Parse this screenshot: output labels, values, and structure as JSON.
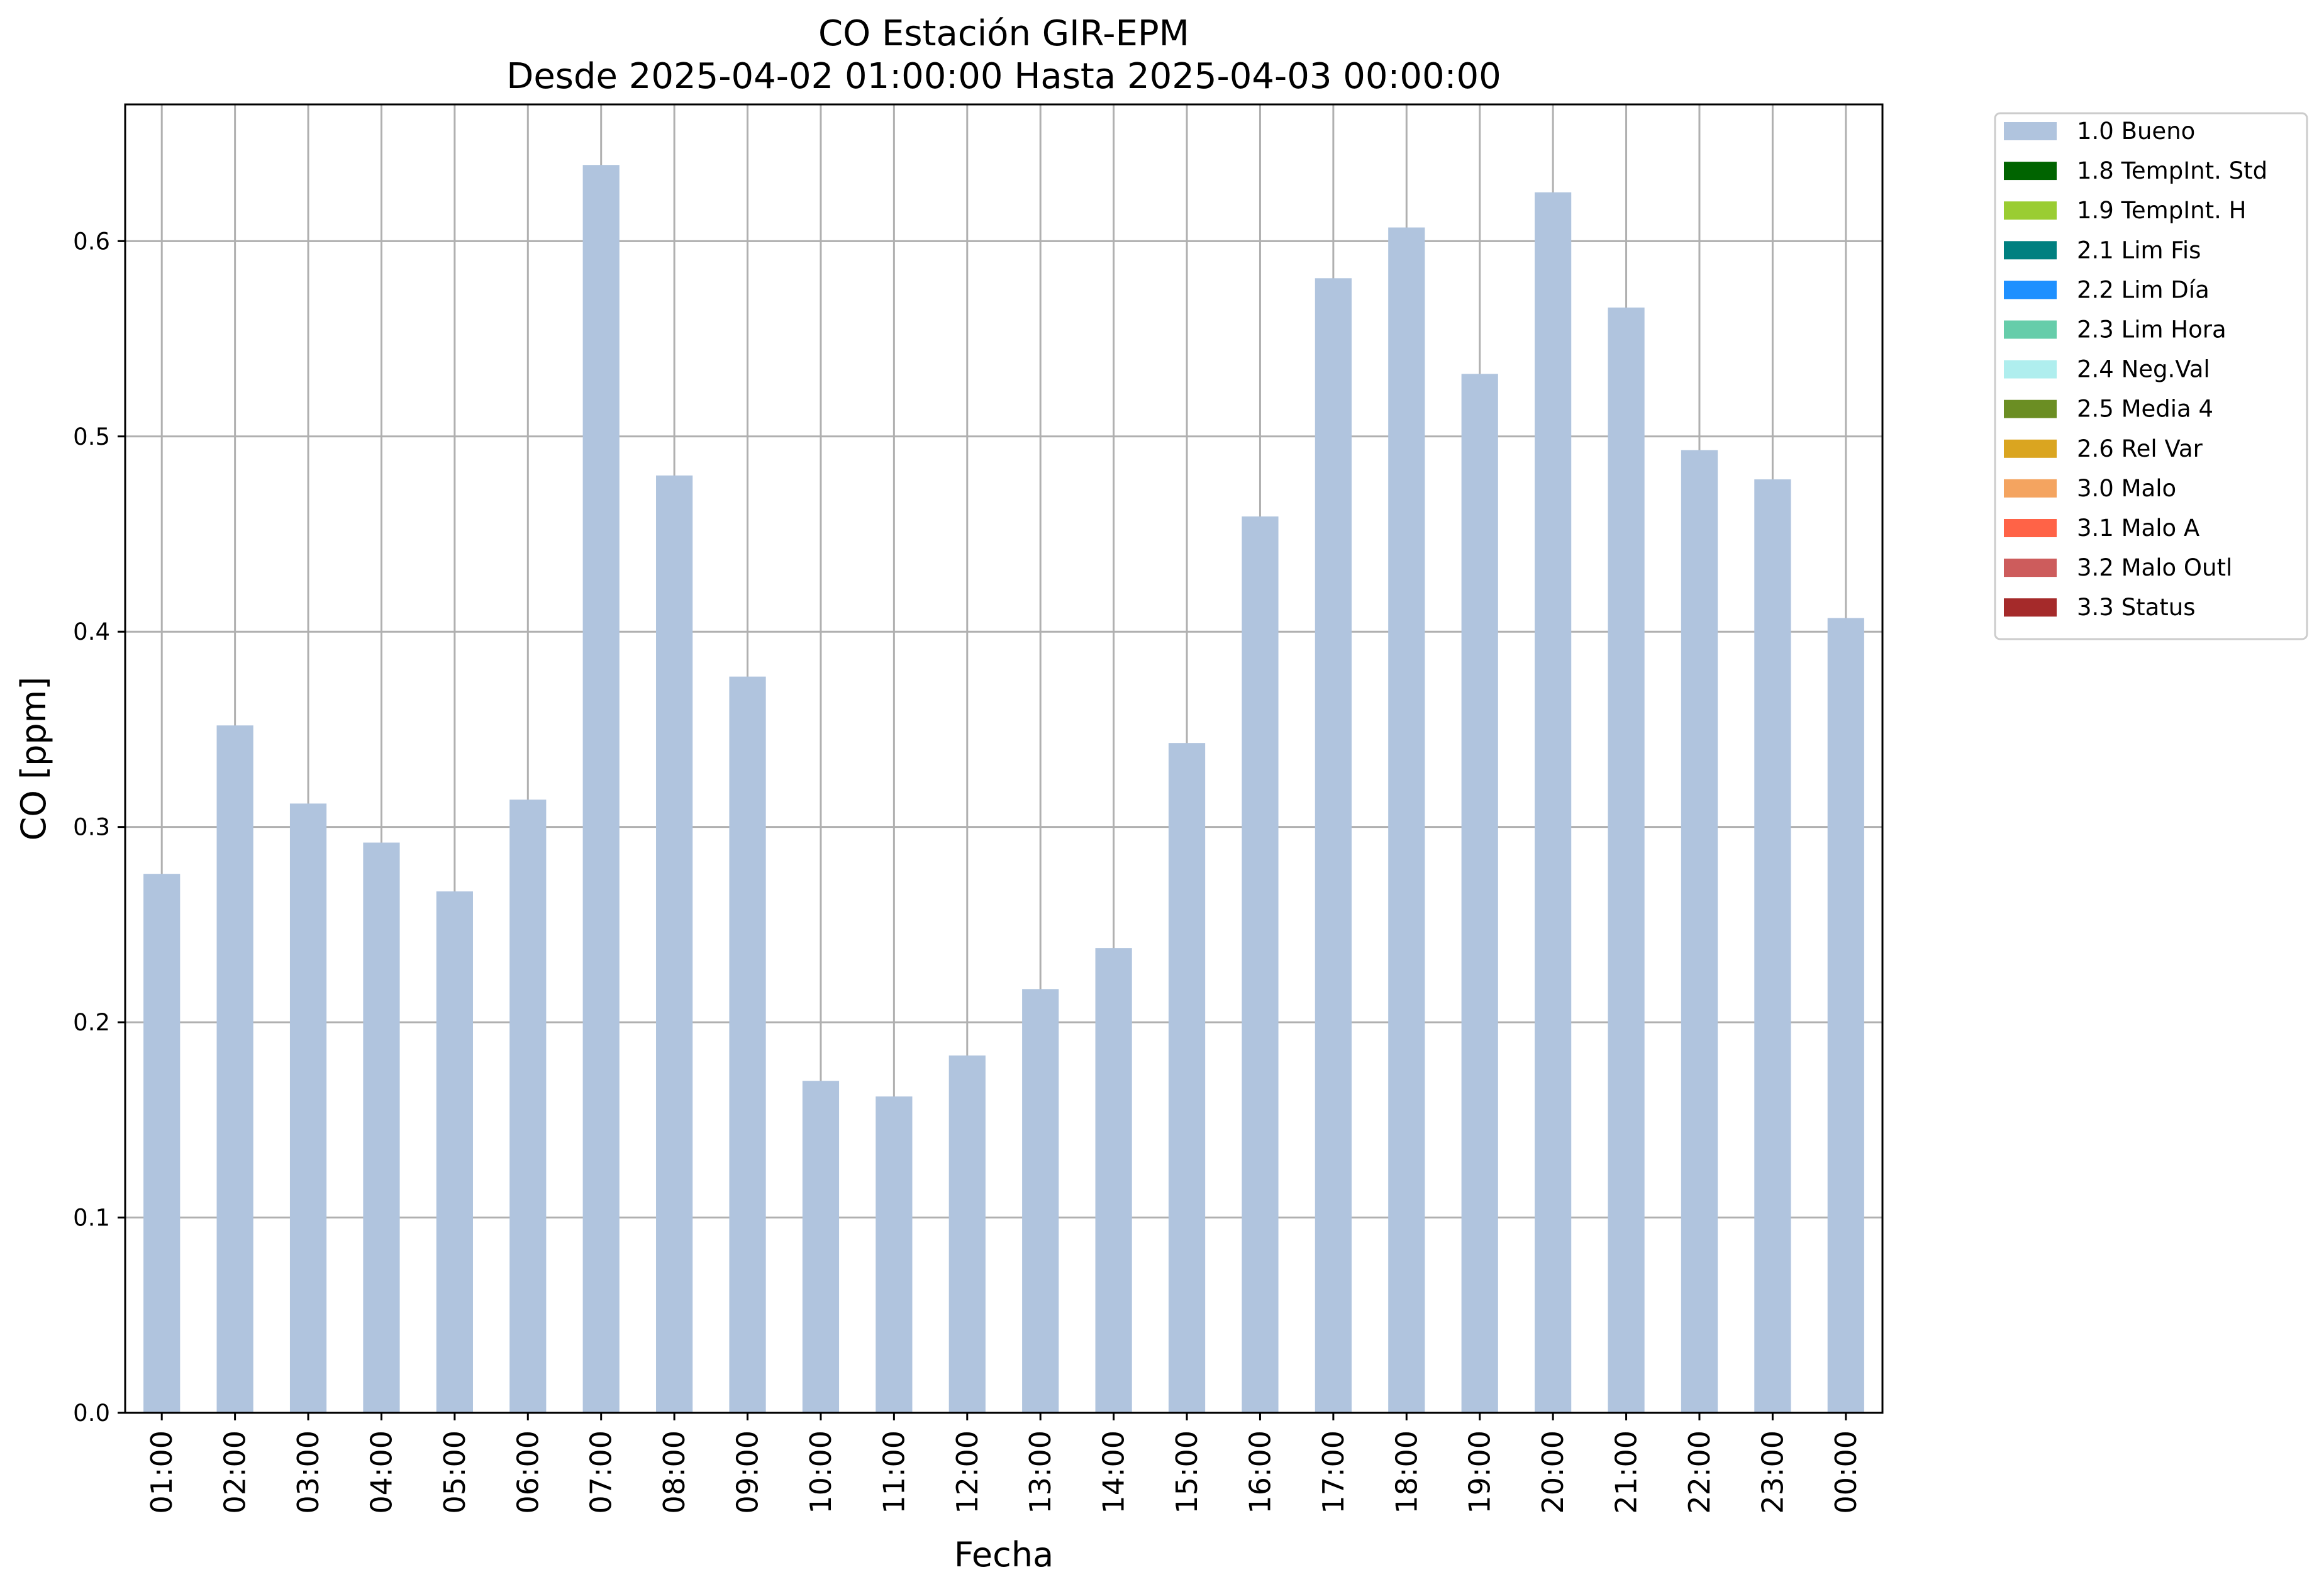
{
  "chart_data": {
    "type": "bar",
    "title": "CO Estación GIR-EPM",
    "subtitle": "Desde 2025-04-02 01:00:00 Hasta 2025-04-03 00:00:00",
    "xlabel": "Fecha",
    "ylabel": "CO [ppm]",
    "ylim": [
      0,
      0.67
    ],
    "yticks": [
      "0.0",
      "0.1",
      "0.2",
      "0.3",
      "0.4",
      "0.5",
      "0.6"
    ],
    "grid": true,
    "legend_position": "outside-top-right",
    "categories": [
      "01:00",
      "02:00",
      "03:00",
      "04:00",
      "05:00",
      "06:00",
      "07:00",
      "08:00",
      "09:00",
      "10:00",
      "11:00",
      "12:00",
      "13:00",
      "14:00",
      "15:00",
      "16:00",
      "17:00",
      "18:00",
      "19:00",
      "20:00",
      "21:00",
      "22:00",
      "23:00",
      "00:00"
    ],
    "series": [
      {
        "name": "1.0 Bueno",
        "color": "#b0c4de",
        "values": [
          0.276,
          0.352,
          0.312,
          0.292,
          0.267,
          0.314,
          0.639,
          0.48,
          0.377,
          0.17,
          0.162,
          0.183,
          0.217,
          0.238,
          0.343,
          0.459,
          0.581,
          0.607,
          0.532,
          0.625,
          0.566,
          0.493,
          0.478,
          0.407
        ]
      }
    ],
    "legend": [
      {
        "label": "1.0 Bueno",
        "color": "#b0c4de"
      },
      {
        "label": "1.8 TempInt. Std",
        "color": "#006400"
      },
      {
        "label": "1.9 TempInt. H",
        "color": "#9acd32"
      },
      {
        "label": "2.1 Lim Fis",
        "color": "#008080"
      },
      {
        "label": "2.2 Lim Día",
        "color": "#1e90ff"
      },
      {
        "label": "2.3 Lim Hora",
        "color": "#66cdaa"
      },
      {
        "label": "2.4 Neg.Val",
        "color": "#afeeee"
      },
      {
        "label": "2.5 Media 4",
        "color": "#6b8e23"
      },
      {
        "label": "2.6 Rel Var",
        "color": "#daa520"
      },
      {
        "label": "3.0 Malo",
        "color": "#f4a460"
      },
      {
        "label": "3.1 Malo A",
        "color": "#ff6347"
      },
      {
        "label": "3.2 Malo Outl",
        "color": "#cd5c5c"
      },
      {
        "label": "3.3 Status",
        "color": "#a52a2a"
      }
    ]
  }
}
